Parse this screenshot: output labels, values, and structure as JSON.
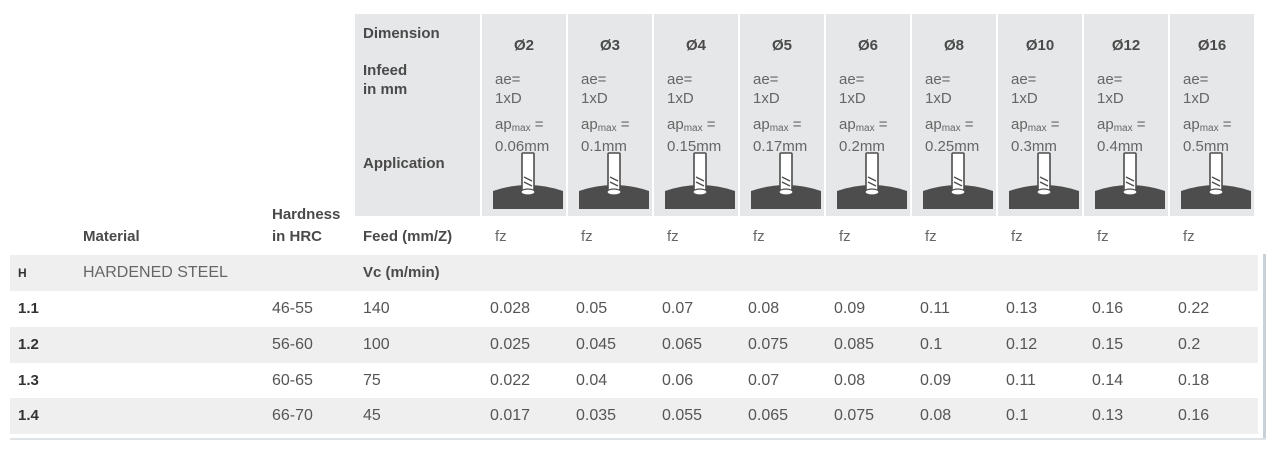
{
  "header": {
    "dimension_label": "Dimension",
    "infeed_label_1": "Infeed",
    "infeed_label_2": "in mm",
    "application_label": "Application",
    "material_label": "Material",
    "hardness_label_1": "Hardness",
    "hardness_label_2": "in HRC",
    "feed_label": "Feed (mm/Z)"
  },
  "columns": [
    {
      "dim": "Ø2",
      "ae_1": "ae=",
      "ae_2": "1xD",
      "ap_pre": "ap",
      "ap_sub": "max",
      "ap_eq": " =",
      "ap_val": "0.06mm",
      "fz": "fz"
    },
    {
      "dim": "Ø3",
      "ae_1": "ae=",
      "ae_2": "1xD",
      "ap_pre": "ap",
      "ap_sub": "max",
      "ap_eq": " =",
      "ap_val": "0.1mm",
      "fz": "fz"
    },
    {
      "dim": "Ø4",
      "ae_1": "ae=",
      "ae_2": "1xD",
      "ap_pre": "ap",
      "ap_sub": "max",
      "ap_eq": " =",
      "ap_val": "0.15mm",
      "fz": "fz"
    },
    {
      "dim": "Ø5",
      "ae_1": "ae=",
      "ae_2": "1xD",
      "ap_pre": "ap",
      "ap_sub": "max",
      "ap_eq": " =",
      "ap_val": "0.17mm",
      "fz": "fz"
    },
    {
      "dim": "Ø6",
      "ae_1": "ae=",
      "ae_2": "1xD",
      "ap_pre": "ap",
      "ap_sub": "max",
      "ap_eq": " =",
      "ap_val": "0.2mm",
      "fz": "fz"
    },
    {
      "dim": "Ø8",
      "ae_1": "ae=",
      "ae_2": "1xD",
      "ap_pre": "ap",
      "ap_sub": "max",
      "ap_eq": " =",
      "ap_val": "0.25mm",
      "fz": "fz"
    },
    {
      "dim": "Ø10",
      "ae_1": "ae=",
      "ae_2": "1xD",
      "ap_pre": "ap",
      "ap_sub": "max",
      "ap_eq": " =",
      "ap_val": "0.3mm",
      "fz": "fz"
    },
    {
      "dim": "Ø12",
      "ae_1": "ae=",
      "ae_2": "1xD",
      "ap_pre": "ap",
      "ap_sub": "max",
      "ap_eq": " =",
      "ap_val": "0.4mm",
      "fz": "fz"
    },
    {
      "dim": "Ø16",
      "ae_1": "ae=",
      "ae_2": "1xD",
      "ap_pre": "ap",
      "ap_sub": "max",
      "ap_eq": " =",
      "ap_val": "0.5mm",
      "fz": "fz"
    }
  ],
  "group": {
    "id": "H",
    "name": "HARDENED STEEL",
    "vc_label": "Vc (m/min)"
  },
  "rows": [
    {
      "id": "1.1",
      "hardness": "46-55",
      "vc": "140",
      "values": [
        "0.028",
        "0.05",
        "0.07",
        "0.08",
        "0.09",
        "0.11",
        "0.13",
        "0.16",
        "0.22"
      ]
    },
    {
      "id": "1.2",
      "hardness": "56-60",
      "vc": "100",
      "values": [
        "0.025",
        "0.045",
        "0.065",
        "0.075",
        "0.085",
        "0.1",
        "0.12",
        "0.15",
        "0.2"
      ]
    },
    {
      "id": "1.3",
      "hardness": "60-65",
      "vc": "75",
      "values": [
        "0.022",
        "0.04",
        "0.06",
        "0.07",
        "0.08",
        "0.09",
        "0.11",
        "0.14",
        "0.18"
      ]
    },
    {
      "id": "1.4",
      "hardness": "66-70",
      "vc": "45",
      "values": [
        "0.017",
        "0.035",
        "0.055",
        "0.065",
        "0.075",
        "0.08",
        "0.1",
        "0.13",
        "0.16"
      ]
    }
  ],
  "icons": {
    "application": "end-mill-tool-icon"
  },
  "colors": {
    "header_bg": "#e6e7e8",
    "row_shade": "#efeff0",
    "tool_fill": "#4d4d4d"
  }
}
